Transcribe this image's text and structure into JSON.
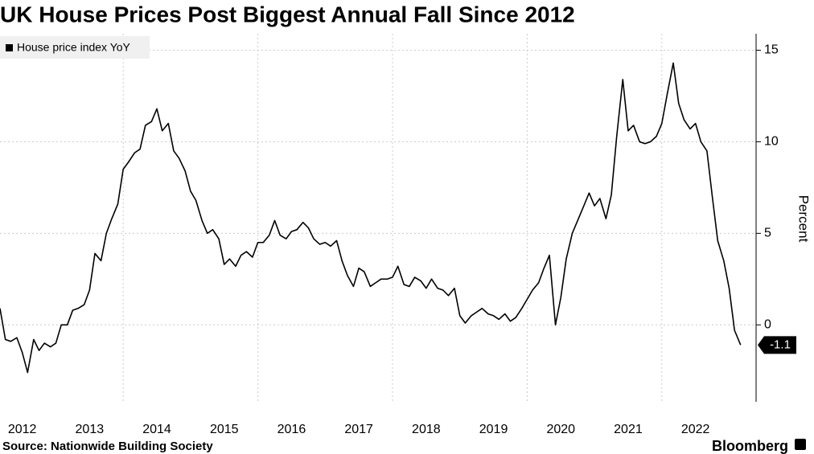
{
  "chart_data": {
    "type": "line",
    "title": "UK House Prices Post Biggest Annual Fall Since 2012",
    "y_label": "Percent",
    "source": "Source: Nationwide Building Society",
    "brand": "Bloomberg",
    "xlim": [
      2012.17,
      2023.4
    ],
    "xticks": [
      {
        "value": 2012.5,
        "label": "2012"
      },
      {
        "value": 2013.5,
        "label": "2013"
      },
      {
        "value": 2014.5,
        "label": "2014"
      },
      {
        "value": 2015.5,
        "label": "2015"
      },
      {
        "value": 2016.5,
        "label": "2016"
      },
      {
        "value": 2017.5,
        "label": "2017"
      },
      {
        "value": 2018.5,
        "label": "2018"
      },
      {
        "value": 2019.5,
        "label": "2019"
      },
      {
        "value": 2020.5,
        "label": "2020"
      },
      {
        "value": 2021.5,
        "label": "2021"
      },
      {
        "value": 2022.5,
        "label": "2022"
      }
    ],
    "xgrid": [
      2014,
      2016,
      2018,
      2020,
      2022
    ],
    "ylim": [
      -4.2,
      15.9
    ],
    "yticks": [
      0,
      5,
      10,
      15
    ],
    "grid": true,
    "legend": "top-left",
    "x": [
      2012.17,
      2012.25,
      2012.33,
      2012.42,
      2012.5,
      2012.58,
      2012.67,
      2012.75,
      2012.83,
      2012.92,
      2013.0,
      2013.08,
      2013.17,
      2013.25,
      2013.33,
      2013.42,
      2013.5,
      2013.58,
      2013.67,
      2013.75,
      2013.83,
      2013.92,
      2014.0,
      2014.08,
      2014.17,
      2014.25,
      2014.33,
      2014.42,
      2014.5,
      2014.58,
      2014.67,
      2014.75,
      2014.83,
      2014.92,
      2015.0,
      2015.08,
      2015.17,
      2015.25,
      2015.33,
      2015.42,
      2015.5,
      2015.58,
      2015.67,
      2015.75,
      2015.83,
      2015.92,
      2016.0,
      2016.08,
      2016.17,
      2016.25,
      2016.33,
      2016.42,
      2016.5,
      2016.58,
      2016.67,
      2016.75,
      2016.83,
      2016.92,
      2017.0,
      2017.08,
      2017.17,
      2017.25,
      2017.33,
      2017.42,
      2017.5,
      2017.58,
      2017.67,
      2017.75,
      2017.83,
      2017.92,
      2018.0,
      2018.08,
      2018.17,
      2018.25,
      2018.33,
      2018.42,
      2018.5,
      2018.58,
      2018.67,
      2018.75,
      2018.83,
      2018.92,
      2019.0,
      2019.08,
      2019.17,
      2019.25,
      2019.33,
      2019.42,
      2019.5,
      2019.58,
      2019.67,
      2019.75,
      2019.83,
      2019.92,
      2020.0,
      2020.08,
      2020.17,
      2020.25,
      2020.33,
      2020.42,
      2020.5,
      2020.58,
      2020.67,
      2020.75,
      2020.83,
      2020.92,
      2021.0,
      2021.08,
      2021.17,
      2021.25,
      2021.33,
      2021.42,
      2021.5,
      2021.58,
      2021.67,
      2021.75,
      2021.83,
      2021.92,
      2022.0,
      2022.08,
      2022.17,
      2022.25,
      2022.33,
      2022.42,
      2022.5,
      2022.58,
      2022.67,
      2022.75,
      2022.83,
      2022.92,
      2023.0,
      2023.08,
      2023.17
    ],
    "series": [
      {
        "name": "House price index YoY",
        "color": "#000000",
        "values": [
          0.9,
          -0.8,
          -0.9,
          -0.7,
          -1.5,
          -2.6,
          -0.8,
          -1.4,
          -1.0,
          -1.2,
          -1.0,
          0.0,
          0.0,
          0.8,
          0.9,
          1.1,
          1.9,
          3.9,
          3.5,
          5.0,
          5.8,
          6.6,
          8.5,
          8.9,
          9.4,
          9.6,
          10.9,
          11.1,
          11.8,
          10.6,
          11.0,
          9.5,
          9.1,
          8.4,
          7.3,
          6.8,
          5.7,
          5.0,
          5.2,
          4.7,
          3.3,
          3.6,
          3.2,
          3.8,
          4.0,
          3.7,
          4.5,
          4.5,
          4.9,
          5.7,
          4.9,
          4.7,
          5.1,
          5.2,
          5.6,
          5.3,
          4.7,
          4.4,
          4.5,
          4.3,
          4.6,
          3.5,
          2.7,
          2.1,
          3.1,
          2.9,
          2.1,
          2.3,
          2.5,
          2.5,
          2.6,
          3.2,
          2.2,
          2.1,
          2.6,
          2.4,
          2.0,
          2.5,
          2.0,
          1.9,
          1.6,
          2.0,
          0.5,
          0.1,
          0.5,
          0.7,
          0.9,
          0.6,
          0.5,
          0.3,
          0.6,
          0.2,
          0.4,
          0.9,
          1.4,
          1.9,
          2.3,
          3.1,
          3.8,
          0.0,
          1.5,
          3.6,
          5.0,
          5.7,
          6.4,
          7.2,
          6.5,
          6.9,
          5.8,
          7.1,
          10.3,
          13.4,
          10.6,
          10.9,
          10.0,
          9.9,
          10.0,
          10.3,
          11.0,
          12.6,
          14.3,
          12.1,
          11.2,
          10.7,
          11.0,
          10.0,
          9.5,
          7.0,
          4.6,
          3.5,
          2.0,
          -0.3,
          -1.1
        ]
      }
    ]
  }
}
